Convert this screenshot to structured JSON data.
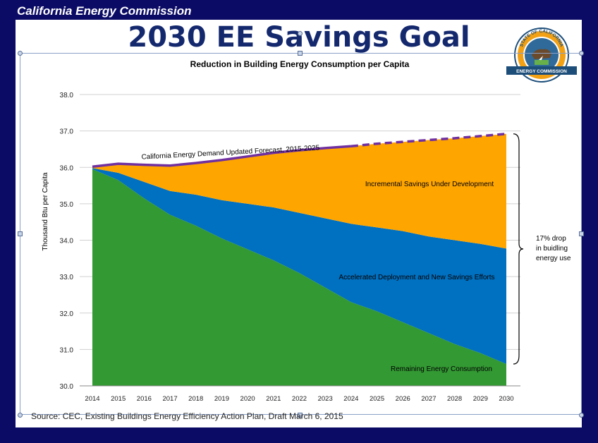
{
  "header": {
    "organization": "California Energy Commission"
  },
  "slide": {
    "title": "2030 EE Savings Goal"
  },
  "logo": {
    "top_text": "STATE OF CALIFORNIA",
    "bottom_text": "ENERGY COMMISSION"
  },
  "source": "Source: CEC, Existing Buildings Energy Efficiency Action Plan, Draft March 6, 2015",
  "colors": {
    "frame": "#0b0b66",
    "green": "#339933",
    "blue": "#0070c0",
    "orange": "#ffa500",
    "forecast_line": "#7030a0",
    "title": "#14286e"
  },
  "chart_data": {
    "type": "area",
    "title": "Reduction in Building Energy Consumption per Capita",
    "ylabel": "Thousand Btu per Capita",
    "xlabel": "",
    "ylim": [
      30.0,
      38.0
    ],
    "yticks": [
      "30.0",
      "31.0",
      "32.0",
      "33.0",
      "34.0",
      "35.0",
      "36.0",
      "37.0",
      "38.0"
    ],
    "categories": [
      "2014",
      "2015",
      "2016",
      "2017",
      "2018",
      "2019",
      "2020",
      "2021",
      "2022",
      "2023",
      "2024",
      "2025",
      "2026",
      "2027",
      "2028",
      "2029",
      "2030"
    ],
    "grid": true,
    "series": [
      {
        "name": "Remaining Energy Consumption",
        "values": [
          35.95,
          35.65,
          35.15,
          34.7,
          34.4,
          34.05,
          33.75,
          33.45,
          33.1,
          32.7,
          32.3,
          32.05,
          31.75,
          31.45,
          31.15,
          30.9,
          30.6
        ]
      },
      {
        "name": "Accelerated Deployment and New Savings Efforts",
        "values": [
          35.98,
          35.85,
          35.6,
          35.35,
          35.25,
          35.1,
          35.0,
          34.9,
          34.75,
          34.6,
          34.45,
          34.35,
          34.25,
          34.1,
          34.0,
          33.9,
          33.77
        ]
      },
      {
        "name": "Incremental Savings Under Development",
        "values": [
          36.02,
          36.1,
          36.07,
          36.05,
          36.12,
          36.2,
          36.3,
          36.4,
          36.47,
          36.53,
          36.58,
          36.65,
          36.7,
          36.75,
          36.8,
          36.86,
          36.92
        ]
      }
    ],
    "forecast_line": {
      "name": "California Energy Demand Updated Forecast, 2015-2025",
      "values": [
        36.02,
        36.1,
        36.07,
        36.05,
        36.12,
        36.2,
        36.3,
        36.4,
        36.47,
        36.53,
        36.58,
        36.65,
        36.7,
        36.75,
        36.8,
        36.86,
        36.92
      ],
      "dashed_from": "2024"
    },
    "annotation": {
      "lines": [
        "17% drop",
        "in buidling",
        "energy use"
      ]
    }
  }
}
